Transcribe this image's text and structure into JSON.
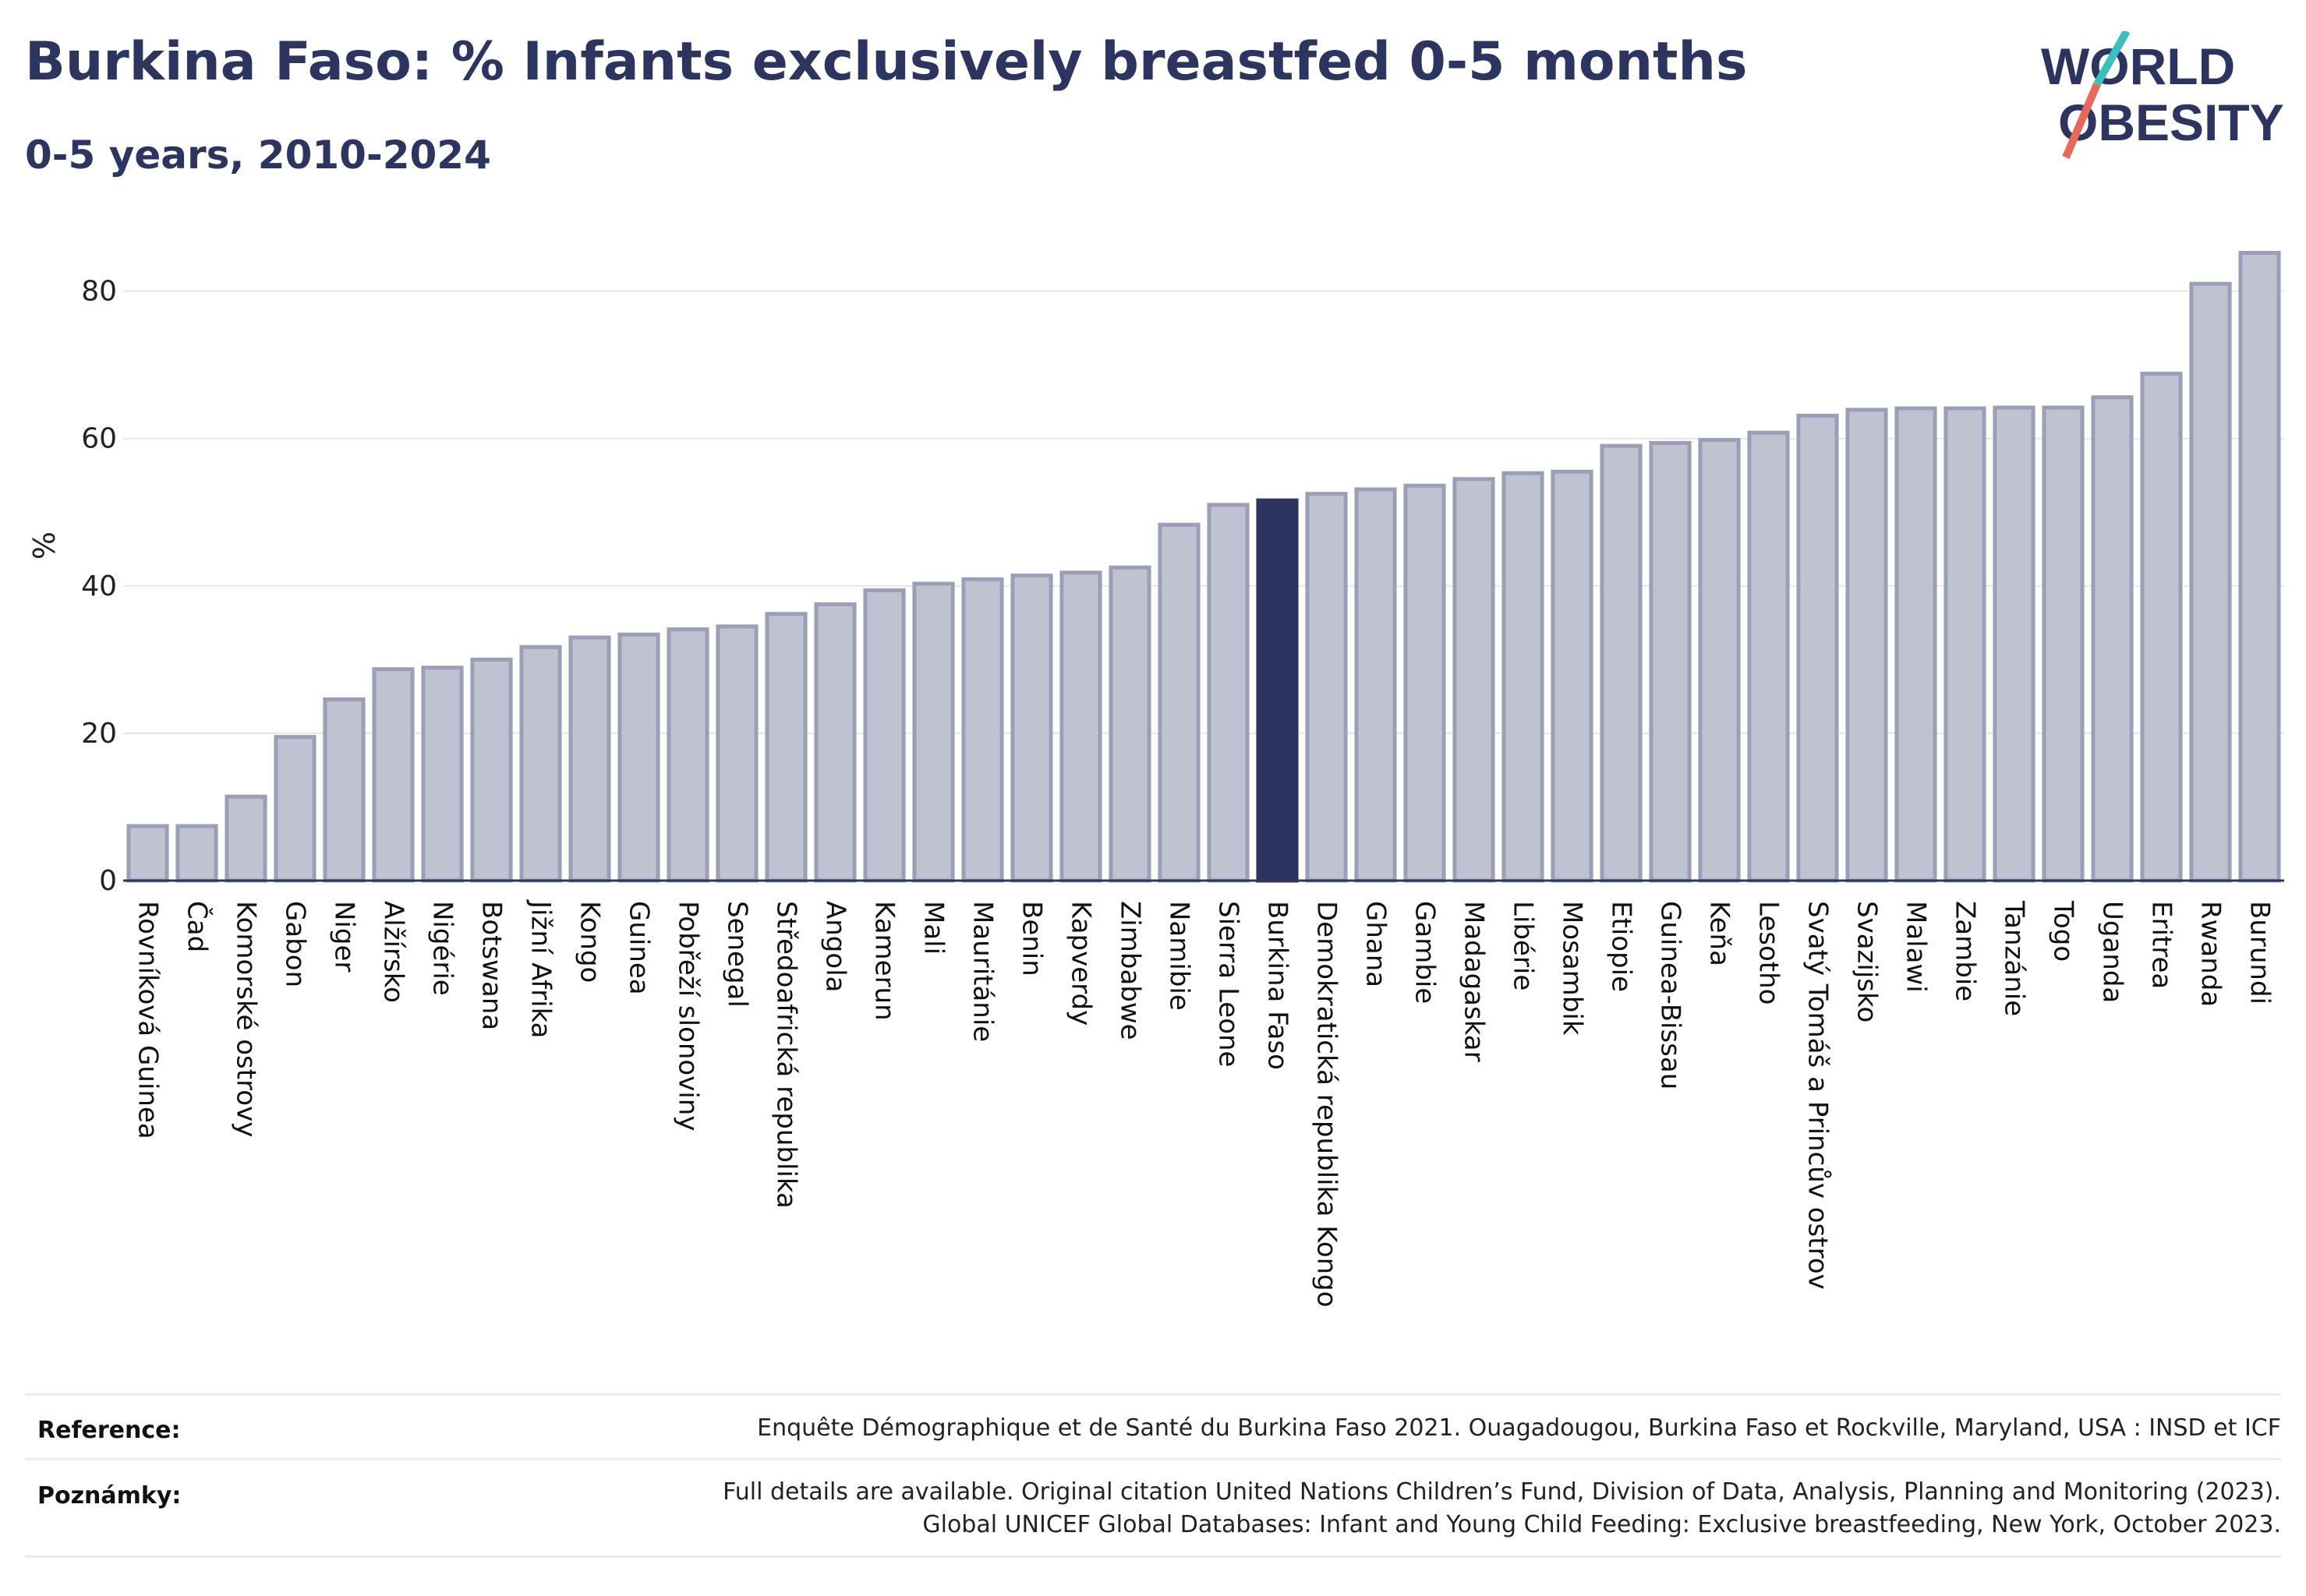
{
  "header": {
    "title": "Burkina Faso: % Infants exclusively breastfed 0-5 months",
    "subtitle": "0-5 years, 2010-2024"
  },
  "logo": {
    "line1": "WORLD",
    "line2": "OBESITY"
  },
  "colors": {
    "bar": "#bfc2d0",
    "bar_stroke": "#9a9fb7",
    "highlight": "#2b3560",
    "title": "#2b3560",
    "logo_teal": "#3bbfbf",
    "logo_red": "#e8685a"
  },
  "chart_data": {
    "type": "bar",
    "title": "",
    "xlabel": "",
    "ylabel": "%",
    "ylim": [
      0,
      88
    ],
    "yticks": [
      0,
      20,
      40,
      60,
      80
    ],
    "grid": true,
    "highlight": "Burkina Faso",
    "categories": [
      "Rovníková Guinea",
      "Čad",
      "Komorské ostrovy",
      "Gabon",
      "Niger",
      "Alžírsko",
      "Nigérie",
      "Botswana",
      "Jižní Afrika",
      "Kongo",
      "Guinea",
      "Pobřeží slonoviny",
      "Senegal",
      "Středoafrická republika",
      "Angola",
      "Kamerun",
      "Mali",
      "Mauritánie",
      "Benin",
      "Kapverdy",
      "Zimbabwe",
      "Namibie",
      "Sierra Leone",
      "Burkina Faso",
      "Demokratická republika Kongo",
      "Ghana",
      "Gambie",
      "Madagaskar",
      "Libérie",
      "Mosambik",
      "Etiopie",
      "Guinea-Bissau",
      "Keňa",
      "Lesotho",
      "Svatý Tomáš a Princův ostrov",
      "Svazijsko",
      "Malawi",
      "Zambie",
      "Tanzánie",
      "Togo",
      "Uganda",
      "Eritrea",
      "Rwanda",
      "Burundi"
    ],
    "values": [
      7.4,
      7.4,
      11.4,
      19.5,
      24.6,
      28.7,
      28.9,
      30.0,
      31.7,
      33.0,
      33.4,
      34.1,
      34.5,
      36.2,
      37.5,
      39.4,
      40.3,
      40.9,
      41.4,
      41.8,
      42.5,
      48.3,
      51.0,
      51.6,
      52.5,
      53.1,
      53.6,
      54.5,
      55.3,
      55.5,
      59.0,
      59.4,
      59.8,
      60.8,
      63.1,
      63.9,
      64.1,
      64.1,
      64.2,
      64.2,
      65.6,
      68.8,
      81.0,
      85.2
    ]
  },
  "footer": {
    "reference_label": "Reference:",
    "reference_text": "Enquête Démographique et de Santé du Burkina Faso 2021. Ouagadougou, Burkina Faso et Rockville, Maryland, USA : INSD et ICF",
    "notes_label": "Poznámky:",
    "notes_line1": "Full details are available. Original citation United Nations Children’s Fund, Division of Data, Analysis, Planning and Monitoring (2023).",
    "notes_line2": "Global UNICEF Global Databases: Infant and Young Child Feeding: Exclusive breastfeeding, New York, October 2023."
  }
}
